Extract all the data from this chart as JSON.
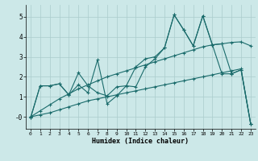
{
  "xlabel": "Humidex (Indice chaleur)",
  "background_color": "#cce8e8",
  "grid_color": "#aacccc",
  "line_color": "#1a6b6b",
  "marker": "+",
  "xlim": [
    -0.5,
    23.5
  ],
  "ylim": [
    -0.6,
    5.6
  ],
  "xticks": [
    0,
    1,
    2,
    3,
    4,
    5,
    6,
    7,
    8,
    9,
    10,
    11,
    12,
    13,
    14,
    15,
    16,
    17,
    18,
    19,
    20,
    21,
    22,
    23
  ],
  "yticks": [
    0,
    1,
    2,
    3,
    4,
    5
  ],
  "ytick_labels": [
    "-0",
    "1",
    "2",
    "3",
    "4",
    "5"
  ],
  "series": [
    {
      "x": [
        0,
        1,
        2,
        3,
        4,
        5,
        6,
        7,
        8,
        9,
        10,
        11,
        12,
        13,
        14,
        15,
        16,
        17,
        18,
        19,
        20,
        21,
        22,
        23
      ],
      "y": [
        -0.05,
        1.55,
        1.55,
        1.65,
        1.1,
        1.6,
        1.2,
        2.85,
        0.65,
        1.05,
        1.55,
        1.5,
        2.5,
        2.9,
        3.45,
        5.1,
        4.35,
        3.55,
        5.05,
        3.6,
        3.65,
        2.15,
        2.35,
        -0.35
      ]
    },
    {
      "x": [
        0,
        1,
        2,
        3,
        4,
        5,
        6,
        7,
        8,
        9,
        10,
        11,
        12,
        13,
        14,
        15,
        16,
        17,
        18,
        19,
        20,
        21,
        22,
        23
      ],
      "y": [
        -0.05,
        1.55,
        1.55,
        1.65,
        1.1,
        2.2,
        1.55,
        1.2,
        1.05,
        1.5,
        1.55,
        2.5,
        2.9,
        3.0,
        3.45,
        5.1,
        4.35,
        3.55,
        5.05,
        3.6,
        2.15,
        2.15,
        2.35,
        -0.35
      ]
    },
    {
      "x": [
        0,
        1,
        2,
        3,
        4,
        5,
        6,
        7,
        8,
        9,
        10,
        11,
        12,
        13,
        14,
        15,
        16,
        17,
        18,
        19,
        20,
        21,
        22,
        23
      ],
      "y": [
        0.0,
        0.3,
        0.6,
        0.9,
        1.15,
        1.4,
        1.6,
        1.8,
        2.0,
        2.15,
        2.3,
        2.45,
        2.6,
        2.75,
        2.9,
        3.05,
        3.2,
        3.35,
        3.5,
        3.6,
        3.65,
        3.72,
        3.75,
        3.55
      ]
    },
    {
      "x": [
        0,
        1,
        2,
        3,
        4,
        5,
        6,
        7,
        8,
        9,
        10,
        11,
        12,
        13,
        14,
        15,
        16,
        17,
        18,
        19,
        20,
        21,
        22,
        23
      ],
      "y": [
        0.0,
        0.1,
        0.2,
        0.35,
        0.5,
        0.65,
        0.8,
        0.9,
        1.0,
        1.1,
        1.2,
        1.3,
        1.4,
        1.5,
        1.6,
        1.7,
        1.8,
        1.9,
        2.0,
        2.1,
        2.2,
        2.3,
        2.4,
        -0.35
      ]
    }
  ]
}
